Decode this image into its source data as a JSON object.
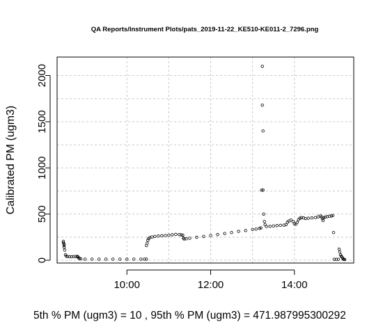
{
  "chart_data": {
    "type": "scatter",
    "title": "QA Reports/Instrument Plots/pats_2019-11-22_KE510-KE011-2_7296.png",
    "xlabel": "",
    "ylabel": "Calibrated PM (ugm3)",
    "xlim": [
      "08:20",
      "15:25"
    ],
    "ylim": [
      -30,
      2200
    ],
    "x_ticks": [
      "10:00",
      "12:00",
      "14:00"
    ],
    "y_ticks": [
      0,
      500,
      1000,
      1500,
      2000
    ],
    "grid": true,
    "grid_style": "dotted",
    "marker": "open-circle",
    "marker_color": "#000000",
    "footer_text": "5th % PM (ugm3) =  10 , 95th % PM (ugm3)  =  471.987995300292",
    "series": [
      {
        "points": [
          [
            "08:29",
            205
          ],
          [
            "08:29",
            190
          ],
          [
            "08:30",
            175
          ],
          [
            "08:30",
            160
          ],
          [
            "08:30",
            140
          ],
          [
            "08:31",
            110
          ],
          [
            "08:32",
            60
          ],
          [
            "08:33",
            45
          ],
          [
            "08:35",
            40
          ],
          [
            "08:38",
            38
          ],
          [
            "08:41",
            38
          ],
          [
            "08:44",
            40
          ],
          [
            "08:47",
            40
          ],
          [
            "08:49",
            42
          ],
          [
            "08:50",
            35
          ],
          [
            "08:51",
            25
          ],
          [
            "08:52",
            20
          ],
          [
            "08:54",
            15
          ],
          [
            "09:00",
            12
          ],
          [
            "09:10",
            12
          ],
          [
            "09:20",
            12
          ],
          [
            "09:30",
            12
          ],
          [
            "09:40",
            12
          ],
          [
            "09:50",
            12
          ],
          [
            "10:00",
            12
          ],
          [
            "10:10",
            12
          ],
          [
            "10:20",
            12
          ],
          [
            "10:25",
            12
          ],
          [
            "10:28",
            12
          ],
          [
            "10:28",
            160
          ],
          [
            "10:29",
            185
          ],
          [
            "10:30",
            215
          ],
          [
            "10:31",
            235
          ],
          [
            "10:33",
            245
          ],
          [
            "10:36",
            252
          ],
          [
            "10:40",
            258
          ],
          [
            "10:45",
            262
          ],
          [
            "10:50",
            265
          ],
          [
            "10:55",
            268
          ],
          [
            "11:00",
            272
          ],
          [
            "11:05",
            276
          ],
          [
            "11:10",
            280
          ],
          [
            "11:15",
            278
          ],
          [
            "11:18",
            275
          ],
          [
            "11:20",
            272
          ],
          [
            "11:21",
            240
          ],
          [
            "11:22",
            230
          ],
          [
            "11:25",
            232
          ],
          [
            "11:30",
            238
          ],
          [
            "11:40",
            248
          ],
          [
            "11:50",
            258
          ],
          [
            "12:00",
            268
          ],
          [
            "12:10",
            278
          ],
          [
            "12:20",
            290
          ],
          [
            "12:30",
            300
          ],
          [
            "12:40",
            312
          ],
          [
            "12:50",
            322
          ],
          [
            "13:00",
            333
          ],
          [
            "13:05",
            338
          ],
          [
            "13:10",
            345
          ],
          [
            "13:12",
            350
          ],
          [
            "13:13",
            760
          ],
          [
            "13:14",
            2100
          ],
          [
            "13:14",
            1680
          ],
          [
            "13:15",
            1400
          ],
          [
            "13:15",
            760
          ],
          [
            "13:16",
            500
          ],
          [
            "13:17",
            420
          ],
          [
            "13:18",
            385
          ],
          [
            "13:20",
            365
          ],
          [
            "13:25",
            368
          ],
          [
            "13:30",
            372
          ],
          [
            "13:35",
            375
          ],
          [
            "13:40",
            378
          ],
          [
            "13:45",
            380
          ],
          [
            "13:48",
            385
          ],
          [
            "13:50",
            410
          ],
          [
            "13:52",
            425
          ],
          [
            "13:55",
            435
          ],
          [
            "13:58",
            420
          ],
          [
            "14:00",
            395
          ],
          [
            "14:02",
            390
          ],
          [
            "14:04",
            410
          ],
          [
            "14:06",
            440
          ],
          [
            "14:08",
            455
          ],
          [
            "14:10",
            462
          ],
          [
            "14:13",
            458
          ],
          [
            "14:16",
            452
          ],
          [
            "14:20",
            455
          ],
          [
            "14:25",
            458
          ],
          [
            "14:30",
            462
          ],
          [
            "14:34",
            470
          ],
          [
            "14:37",
            480
          ],
          [
            "14:39",
            470
          ],
          [
            "14:40",
            450
          ],
          [
            "14:41",
            430
          ],
          [
            "14:42",
            460
          ],
          [
            "14:44",
            468
          ],
          [
            "14:47",
            472
          ],
          [
            "14:50",
            476
          ],
          [
            "14:53",
            480
          ],
          [
            "14:55",
            485
          ],
          [
            "14:56",
            300
          ],
          [
            "14:57",
            10
          ],
          [
            "15:00",
            10
          ],
          [
            "15:03",
            10
          ],
          [
            "15:04",
            120
          ],
          [
            "15:05",
            90
          ],
          [
            "15:06",
            60
          ],
          [
            "15:07",
            45
          ],
          [
            "15:08",
            35
          ],
          [
            "15:09",
            25
          ],
          [
            "15:10",
            12
          ],
          [
            "15:11",
            10
          ],
          [
            "15:12",
            8
          ]
        ]
      }
    ]
  }
}
